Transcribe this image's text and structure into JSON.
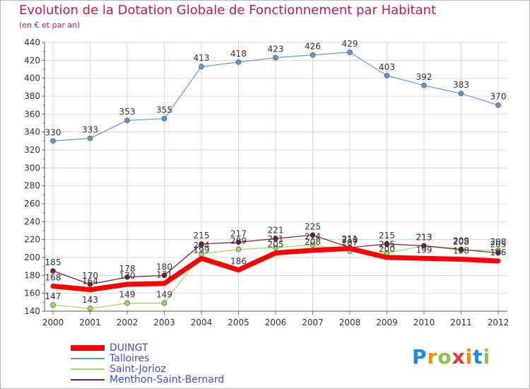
{
  "title": "Evolution de la Dotation Globale de Fonctionnement par Habitant",
  "subtitle": "(en € et par an)",
  "logo": {
    "letters": [
      "P",
      "r",
      "o",
      "x",
      "i",
      "t",
      "i"
    ],
    "colors": [
      "#1e88e5",
      "#fb8c00",
      "#8bc34a",
      "#e53935",
      "#fb8c00",
      "#1e88e5",
      "#8bc34a"
    ]
  },
  "chart_data": {
    "type": "line",
    "x": [
      "2000",
      "2001",
      "2002",
      "2003",
      "2004",
      "2005",
      "2006",
      "2007",
      "2008",
      "2009",
      "2010",
      "2011",
      "2012"
    ],
    "ylim": [
      140,
      440
    ],
    "yticks": [
      140,
      160,
      180,
      200,
      220,
      240,
      260,
      280,
      300,
      320,
      340,
      360,
      380,
      400,
      420,
      440
    ],
    "grid": true,
    "legend_position": "bottom-left",
    "series": [
      {
        "name": "DUINGT",
        "color": "#ff0000",
        "width": 7,
        "marker": false,
        "values": [
          168,
          164,
          170,
          171,
          199,
          186,
          205,
          208,
          210,
          200,
          199,
          198,
          196
        ],
        "labels": [
          "168",
          "164",
          "170",
          "171",
          "199",
          "186",
          "205",
          "208",
          "210",
          "200",
          "199",
          "198",
          "196"
        ]
      },
      {
        "name": "Talloires",
        "color": "#5b9bd5",
        "width": 1.2,
        "marker": true,
        "values": [
          330,
          333,
          353,
          355,
          413,
          418,
          423,
          426,
          429,
          403,
          392,
          383,
          370
        ],
        "labels": [
          "330",
          "333",
          "353",
          "355",
          "413",
          "418",
          "423",
          "426",
          "429",
          "403",
          "392",
          "383",
          "370"
        ]
      },
      {
        "name": "Saint-Jorioz",
        "color": "#99dd55",
        "width": 1.2,
        "marker": true,
        "values": [
          147,
          143,
          149,
          149,
          204,
          209,
          211,
          214,
          207,
          205,
          213,
          208,
          208
        ],
        "labels": [
          "147",
          "143",
          "149",
          "149",
          "204",
          "209",
          "211",
          "214",
          "207",
          "205",
          "213",
          "208",
          "208"
        ]
      },
      {
        "name": "Menthon-Saint-Bernard",
        "color": "#7a1f1f",
        "width": 1.2,
        "marker": true,
        "values": [
          185,
          170,
          178,
          180,
          215,
          217,
          221,
          225,
          211,
          215,
          213,
          209,
          205
        ],
        "labels": [
          "185",
          "170",
          "178",
          "180",
          "215",
          "217",
          "221",
          "225",
          "211",
          "215",
          "213",
          "209",
          "205"
        ]
      }
    ]
  }
}
